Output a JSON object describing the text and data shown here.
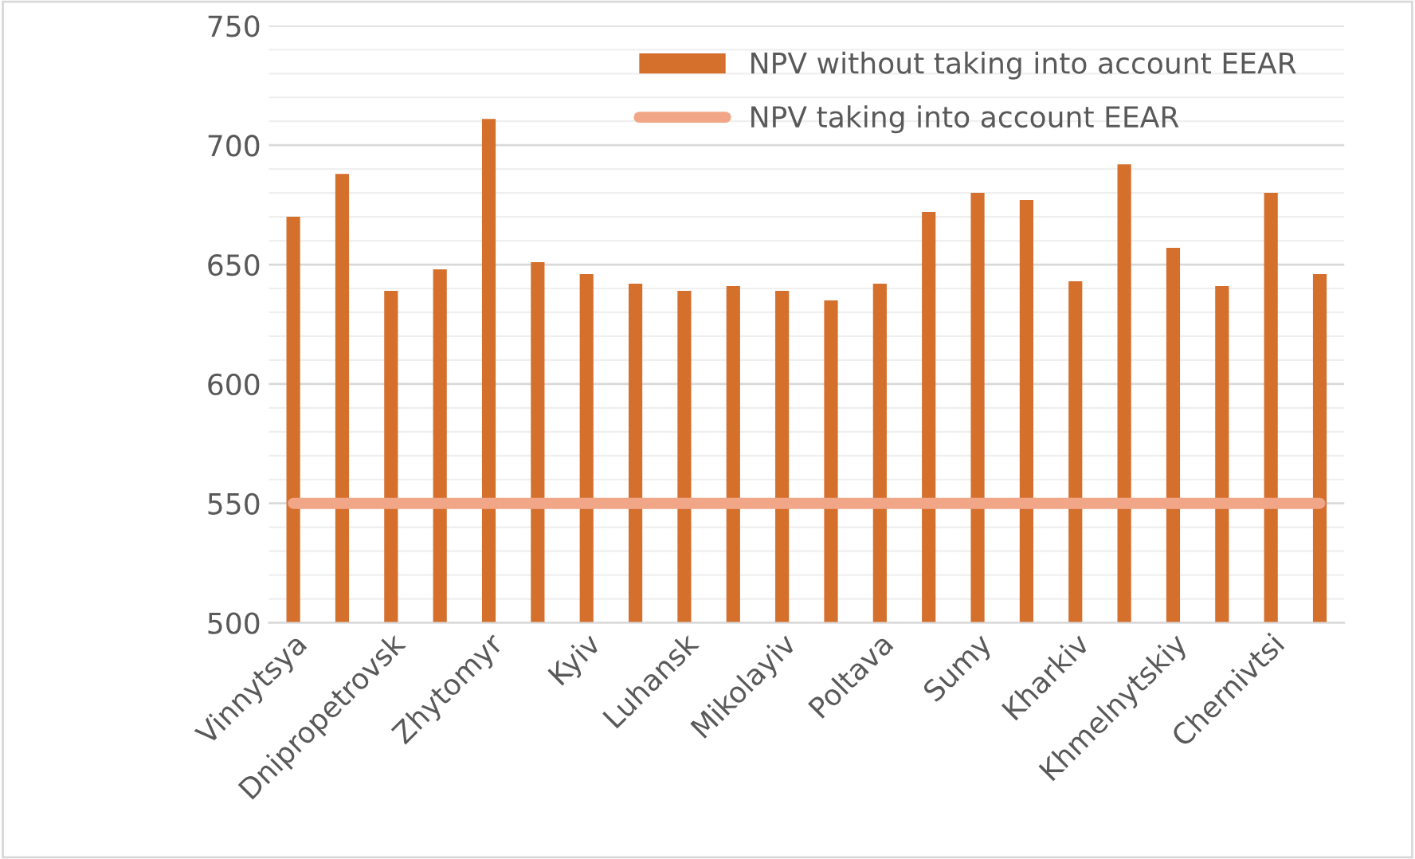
{
  "chart_data": {
    "type": "bar",
    "categories": [
      "Vinnytsya",
      null,
      "Dnipropetrovsk",
      null,
      "Zhytomyr",
      null,
      "Kyiv",
      null,
      "Luhansk",
      null,
      "Mikolayiv",
      null,
      "Poltava",
      null,
      "Sumy",
      null,
      "Kharkiv",
      null,
      "Khmelnytskiy",
      null,
      "Chernivtsi",
      null
    ],
    "series": [
      {
        "name": "NPV without taking into account EEAR",
        "color": "#d46f2c",
        "values": [
          670,
          688,
          639,
          648,
          711,
          651,
          646,
          642,
          639,
          641,
          639,
          635,
          642,
          672,
          680,
          677,
          643,
          692,
          657,
          641,
          680,
          646
        ]
      },
      {
        "name": "NPV taking into account EEAR",
        "type": "line",
        "color": "#f2a688",
        "values": [
          550,
          550,
          550,
          550,
          550,
          550,
          550,
          550,
          550,
          550,
          550,
          550,
          550,
          550,
          550,
          550,
          550,
          550,
          550,
          550,
          550,
          550
        ]
      }
    ],
    "ylim": [
      500,
      750
    ],
    "yticks": [
      500,
      550,
      600,
      650,
      700,
      750
    ],
    "grid": "y",
    "legend": "top right"
  }
}
